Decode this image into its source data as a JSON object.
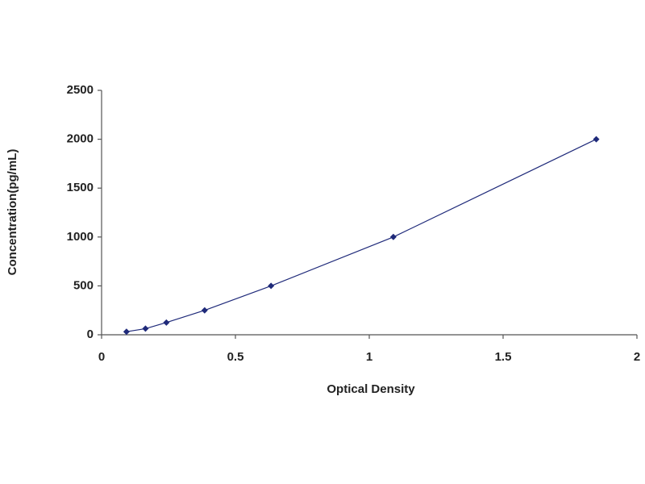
{
  "chart_data": {
    "type": "scatter",
    "x_label": "Optical Density",
    "y_label": "Concentration(pg/mL)",
    "x": [
      0.093,
      0.164,
      0.242,
      0.385,
      0.633,
      1.09,
      1.848
    ],
    "series": [
      {
        "color": "#1f2a7a",
        "values": [
          31.25,
          62.5,
          125,
          250,
          500,
          1000,
          2000
        ]
      }
    ],
    "xlim": [
      0,
      2
    ],
    "xticks": [
      0,
      0.5,
      1,
      1.5,
      2
    ],
    "ylim": [
      0,
      2500
    ],
    "yticks": [
      0,
      500,
      1000,
      1500,
      2000,
      2500
    ],
    "grid": false
  }
}
